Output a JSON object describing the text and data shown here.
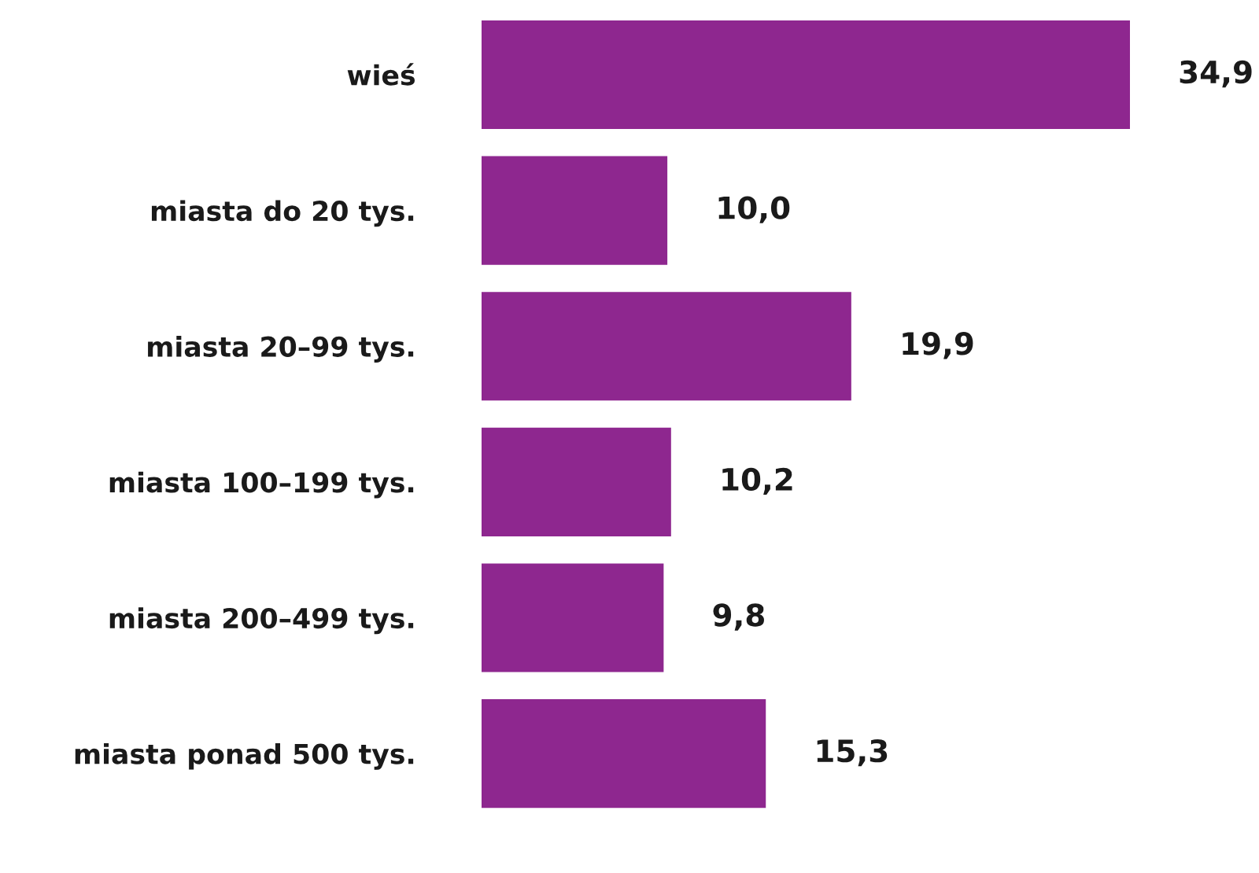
{
  "chart_data": {
    "type": "bar",
    "orientation": "horizontal",
    "categories": [
      "wieś",
      "miasta do 20 tys.",
      "miasta 20–99 tys.",
      "miasta 100–199 tys.",
      "miasta 200–499 tys.",
      "miasta ponad 500 tys."
    ],
    "values": [
      34.9,
      10.0,
      19.9,
      10.2,
      9.8,
      15.3
    ],
    "value_labels": [
      "34,9",
      "10,0",
      "19,9",
      "10,2",
      "9,8",
      "15,3"
    ],
    "color": "#8e278f",
    "grid": false,
    "legend": false
  }
}
